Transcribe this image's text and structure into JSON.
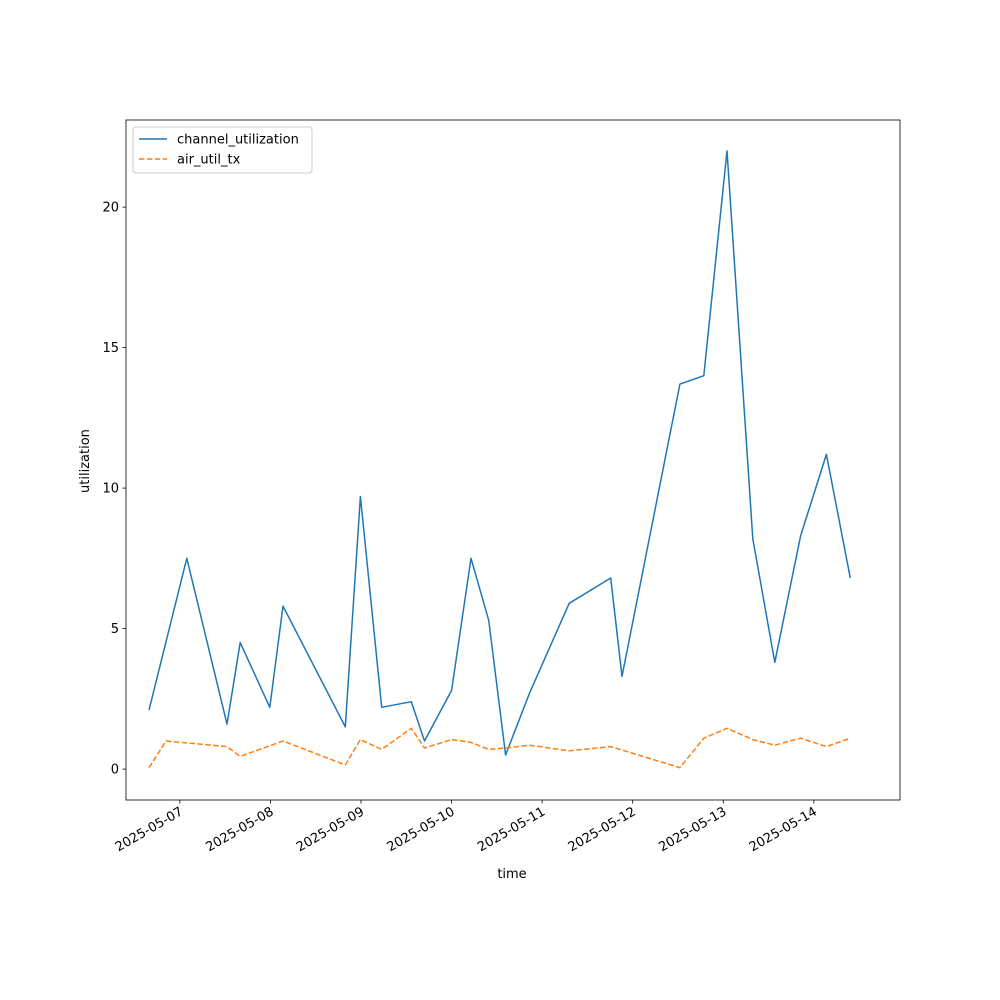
{
  "chart_data": {
    "type": "line",
    "title": "",
    "xlabel": "time",
    "ylabel": "utilization",
    "x_ticks": [
      "2025-05-07",
      "2025-05-08",
      "2025-05-09",
      "2025-05-10",
      "2025-05-11",
      "2025-05-12",
      "2025-05-13",
      "2025-05-14"
    ],
    "y_ticks": [
      0,
      5,
      10,
      15,
      20
    ],
    "xlim": [
      "2025-05-06 09:44",
      "2025-05-14 22:50"
    ],
    "ylim": [
      -1.1,
      23.1
    ],
    "grid": false,
    "legend": "upper-left",
    "series": [
      {
        "name": "channel_utilization",
        "color": "#1f77b4",
        "linestyle": "solid",
        "x": [
          "2025-05-06 15:50",
          "2025-05-07 01:50",
          "2025-05-07 12:30",
          "2025-05-07 16:00",
          "2025-05-07 23:50",
          "2025-05-08 03:20",
          "2025-05-08 19:50",
          "2025-05-08 23:50",
          "2025-05-09 05:30",
          "2025-05-09 13:20",
          "2025-05-09 16:50",
          "2025-05-10 00:00",
          "2025-05-10 05:10",
          "2025-05-10 09:50",
          "2025-05-10 14:20",
          "2025-05-10 20:40",
          "2025-05-11 07:10",
          "2025-05-11 18:10",
          "2025-05-11 21:10",
          "2025-05-12 12:30",
          "2025-05-12 18:50",
          "2025-05-13 01:00",
          "2025-05-13 07:50",
          "2025-05-13 13:40",
          "2025-05-13 20:30",
          "2025-05-14 03:20",
          "2025-05-14 09:40"
        ],
        "y": [
          2.1,
          7.5,
          1.6,
          4.5,
          2.2,
          5.8,
          1.5,
          9.7,
          2.2,
          2.4,
          1.0,
          2.8,
          7.5,
          5.3,
          0.5,
          2.7,
          5.9,
          6.8,
          3.3,
          13.7,
          14.0,
          22.0,
          8.2,
          3.8,
          8.3,
          11.2,
          6.8
        ]
      },
      {
        "name": "air_util_tx",
        "color": "#ff7f0e",
        "linestyle": "dashed",
        "x": [
          "2025-05-06 15:50",
          "2025-05-06 20:20",
          "2025-05-07 12:30",
          "2025-05-07 16:00",
          "2025-05-08 03:20",
          "2025-05-08 19:50",
          "2025-05-08 23:50",
          "2025-05-09 05:30",
          "2025-05-09 13:20",
          "2025-05-09 16:50",
          "2025-05-10 00:00",
          "2025-05-10 05:10",
          "2025-05-10 09:50",
          "2025-05-10 14:20",
          "2025-05-10 20:40",
          "2025-05-11 07:10",
          "2025-05-11 18:10",
          "2025-05-12 12:30",
          "2025-05-12 18:50",
          "2025-05-13 01:00",
          "2025-05-13 07:50",
          "2025-05-13 13:40",
          "2025-05-13 20:30",
          "2025-05-14 03:20",
          "2025-05-14 09:40"
        ],
        "y": [
          0.05,
          1.0,
          0.8,
          0.45,
          1.0,
          0.15,
          1.05,
          0.7,
          1.45,
          0.75,
          1.05,
          0.95,
          0.7,
          0.75,
          0.85,
          0.65,
          0.8,
          0.05,
          1.1,
          1.45,
          1.05,
          0.85,
          1.1,
          0.8,
          1.1
        ]
      }
    ]
  }
}
